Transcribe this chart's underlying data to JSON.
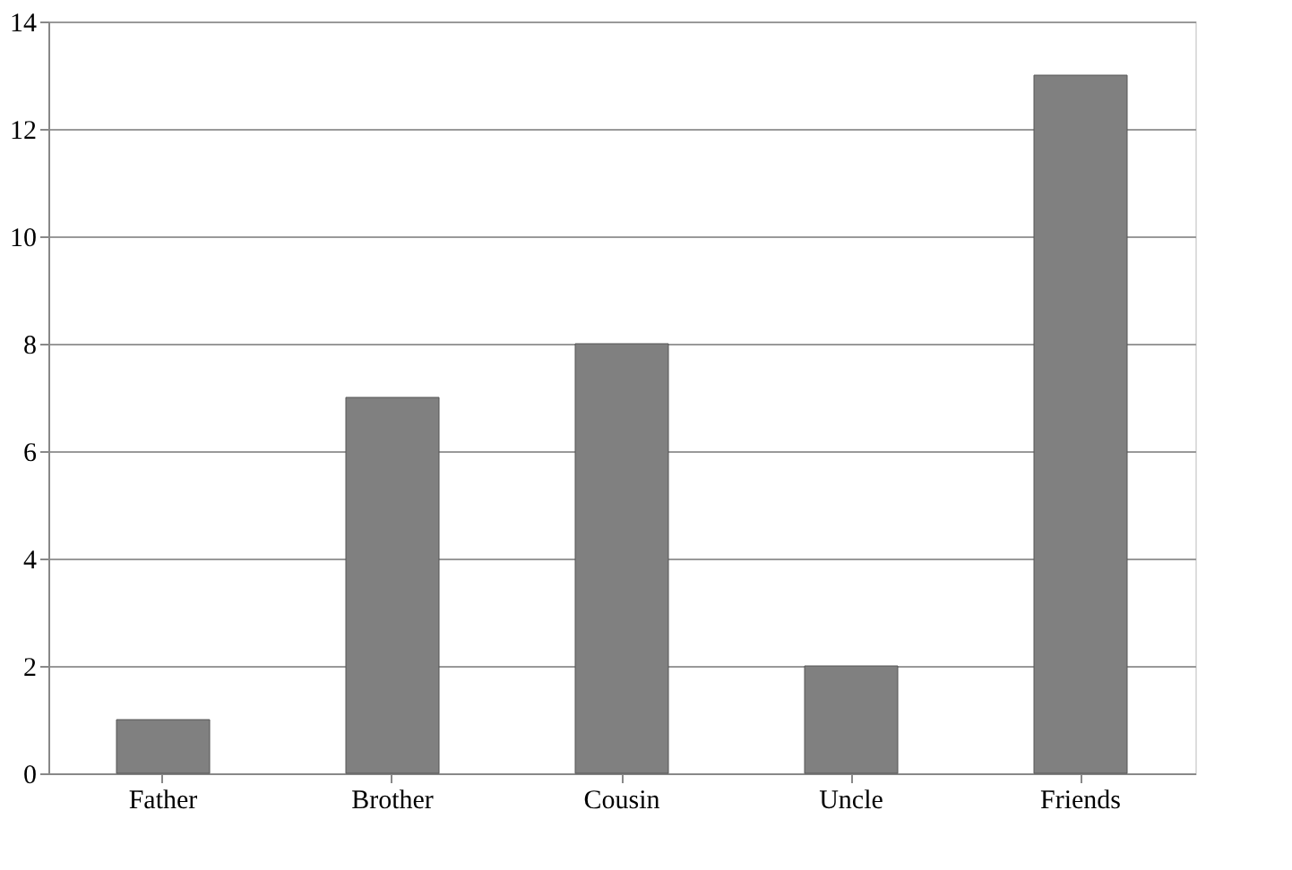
{
  "chart_data": {
    "type": "bar",
    "categories": [
      "Father",
      "Brother",
      "Cousin",
      "Uncle",
      "Friends"
    ],
    "values": [
      1,
      7,
      8,
      2,
      13
    ],
    "color": "#808080",
    "ylim": [
      0,
      14
    ],
    "yticks": [
      0,
      2,
      4,
      6,
      8,
      10,
      12,
      14
    ],
    "grid": "y"
  }
}
